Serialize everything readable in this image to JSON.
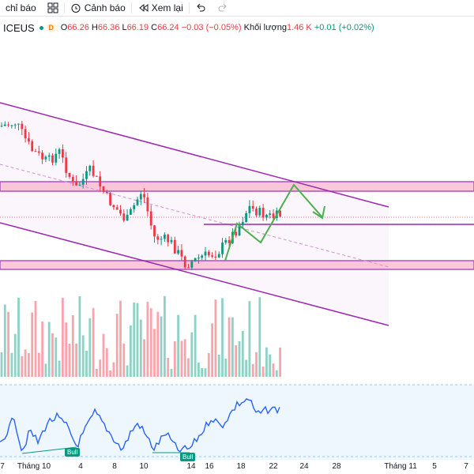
{
  "toolbar": {
    "indicators_label": "chỉ báo",
    "alert_label": "Cảnh báo",
    "replay_label": "Xem lại"
  },
  "legend": {
    "symbol": "ICEUS",
    "interval_badge": "D",
    "open_key": "O",
    "open": "66.26",
    "high_key": "H",
    "high": "66.36",
    "low_key": "L",
    "low": "66.19",
    "close_key": "C",
    "close": "66.24",
    "change": "−0.03 (−0.05%)",
    "volume_label": "Khối lượng",
    "volume": "1.46 K",
    "volume_change": "+0.01 (+0.02%)"
  },
  "colors": {
    "up": "#089981",
    "down": "#f23645",
    "channel": "#9c27b0",
    "zone_fill": "#f8bbd0",
    "arrow": "#4caf50",
    "rsi": "#2962ff",
    "rsi_bg": "#e3f2fd"
  },
  "signals": {
    "bull_1": "Bull",
    "bull_2": "Bull"
  },
  "time_axis": [
    "7",
    "Tháng 10",
    "4",
    "8",
    "10",
    "14",
    "16",
    "18",
    "22",
    "24",
    "28",
    "Tháng 11",
    "5",
    "7"
  ]
}
